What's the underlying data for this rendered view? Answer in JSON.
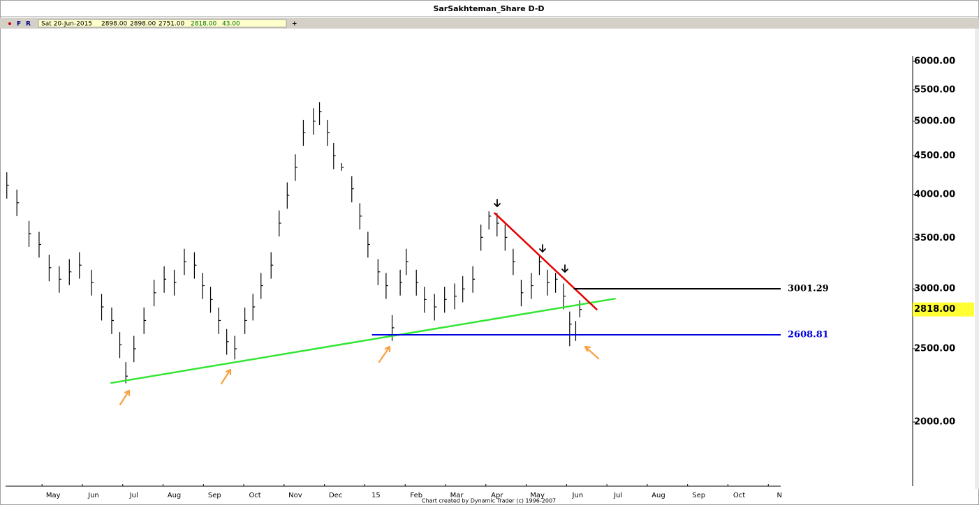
{
  "chart_data": {
    "type": "ohlc",
    "title": "SarSakhteman_Share D-D",
    "toolbar": {
      "flags": [
        "F",
        "R"
      ],
      "date": "Sat 20-Jun-2015",
      "quote": [
        "2898.00",
        "2898.00",
        "2751.00",
        "2818.00",
        "43.00"
      ],
      "add": "+"
    },
    "credit": "Chart created by Dynamic Trader  (c) 1996-2007",
    "color": "#000000",
    "log_scale": true,
    "xlim": [
      -1.18,
      18.03
    ],
    "xticks": [
      {
        "value": 0,
        "label": "May"
      },
      {
        "value": 1,
        "label": "Jun"
      },
      {
        "value": 2,
        "label": "Jul"
      },
      {
        "value": 3,
        "label": "Aug"
      },
      {
        "value": 4,
        "label": "Sep"
      },
      {
        "value": 5,
        "label": "Oct"
      },
      {
        "value": 6,
        "label": "Nov"
      },
      {
        "value": 7,
        "label": "Dec"
      },
      {
        "value": 8,
        "label": "15"
      },
      {
        "value": 9,
        "label": "Feb"
      },
      {
        "value": 10,
        "label": "Mar"
      },
      {
        "value": 11,
        "label": "Apr"
      },
      {
        "value": 12,
        "label": "May"
      },
      {
        "value": 13,
        "label": "Jun"
      },
      {
        "value": 14,
        "label": "Jul"
      },
      {
        "value": 15,
        "label": "Aug"
      },
      {
        "value": 16,
        "label": "Sep"
      },
      {
        "value": 17,
        "label": "Oct"
      },
      {
        "value": 18,
        "label": "N"
      }
    ],
    "ylim": [
      1645,
      6532
    ],
    "yticks": [
      {
        "value": 2000,
        "label": "2000.00"
      },
      {
        "value": 2500,
        "label": "2500.00"
      },
      {
        "value": 3000,
        "label": "3000.00"
      },
      {
        "value": 3500,
        "label": "3500.00"
      },
      {
        "value": 4000,
        "label": "4000.00"
      },
      {
        "value": 4500,
        "label": "4500.00"
      },
      {
        "value": 5000,
        "label": "5000.00"
      },
      {
        "value": 5500,
        "label": "5500.00"
      },
      {
        "value": 6000,
        "label": "6000.00"
      }
    ],
    "x": [
      -1.15,
      -0.9,
      -0.6,
      -0.35,
      -0.1,
      0.15,
      0.4,
      0.65,
      0.95,
      1.2,
      1.45,
      1.65,
      1.8,
      2.0,
      2.25,
      2.5,
      2.75,
      3.0,
      3.25,
      3.5,
      3.7,
      3.9,
      4.1,
      4.3,
      4.5,
      4.75,
      4.95,
      5.15,
      5.4,
      5.6,
      5.8,
      6.0,
      6.2,
      6.45,
      6.6,
      6.8,
      6.95,
      7.15,
      7.4,
      7.6,
      7.8,
      8.05,
      8.25,
      8.4,
      8.6,
      8.75,
      9.0,
      9.2,
      9.45,
      9.7,
      9.95,
      10.15,
      10.4,
      10.6,
      10.8,
      11.0,
      11.2,
      11.4,
      11.6,
      11.85,
      12.05,
      12.25,
      12.45,
      12.65,
      12.8,
      12.95,
      13.05
    ],
    "high": [
      4280,
      4060,
      3690,
      3570,
      3330,
      3215,
      3285,
      3355,
      3180,
      2955,
      2835,
      2630,
      2400,
      2600,
      2835,
      3085,
      3215,
      3180,
      3390,
      3355,
      3150,
      3020,
      2835,
      2655,
      2600,
      2835,
      2955,
      3150,
      3355,
      3810,
      4150,
      4520,
      5020,
      5200,
      5300,
      5020,
      4680,
      4400,
      4230,
      3895,
      3570,
      3285,
      3150,
      2770,
      3180,
      3390,
      3180,
      3020,
      2955,
      3020,
      3050,
      3120,
      3215,
      3650,
      3800,
      3780,
      3650,
      3390,
      3085,
      3150,
      3320,
      3180,
      3150,
      3050,
      2800,
      2720,
      2898
    ],
    "low": [
      3950,
      3745,
      3410,
      3300,
      3070,
      2965,
      3035,
      3095,
      2940,
      2725,
      2615,
      2430,
      2250,
      2400,
      2615,
      2845,
      2965,
      2940,
      3130,
      3095,
      2910,
      2790,
      2615,
      2455,
      2420,
      2615,
      2725,
      2910,
      3095,
      3520,
      3830,
      4170,
      4640,
      4800,
      4945,
      4640,
      4320,
      4300,
      3905,
      3595,
      3300,
      3035,
      2910,
      2560,
      2940,
      3130,
      2940,
      2790,
      2725,
      2790,
      2820,
      2880,
      2965,
      3370,
      3595,
      3520,
      3370,
      3130,
      2845,
      2910,
      3130,
      2940,
      2965,
      2820,
      2520,
      2560,
      2751
    ],
    "close": [
      4115,
      3900,
      3550,
      3435,
      3200,
      3090,
      3160,
      3225,
      3060,
      2840,
      2725,
      2530,
      2300,
      2500,
      2725,
      2965,
      3090,
      3060,
      3260,
      3225,
      3030,
      2905,
      2725,
      2555,
      2500,
      2725,
      2840,
      3030,
      3225,
      3665,
      3990,
      4345,
      4830,
      5000,
      5150,
      4830,
      4500,
      4345,
      4070,
      3745,
      3435,
      3160,
      3030,
      2665,
      3060,
      3260,
      3060,
      2905,
      2840,
      2905,
      2935,
      3000,
      3090,
      3510,
      3745,
      3665,
      3510,
      3260,
      2965,
      3030,
      3260,
      3060,
      3090,
      2935,
      2695,
      2610,
      2818
    ],
    "trendlines": [
      {
        "x": [
          1.42,
          13.94
        ],
        "y": [
          2252,
          2913
        ],
        "color": "#33e633"
      },
      {
        "x": [
          10.93,
          13.48
        ],
        "y": [
          3784,
          2815
        ],
        "color": "#e60000"
      }
    ],
    "levels": [
      {
        "value": 3001.29,
        "x_start": 12.9,
        "color": "#000000"
      },
      {
        "value": 2608.81,
        "x_start": 7.9,
        "color": "#0000e0"
      }
    ],
    "last_price": {
      "value": 2818,
      "label": "2818.00",
      "color": "#ffff33"
    }
  }
}
